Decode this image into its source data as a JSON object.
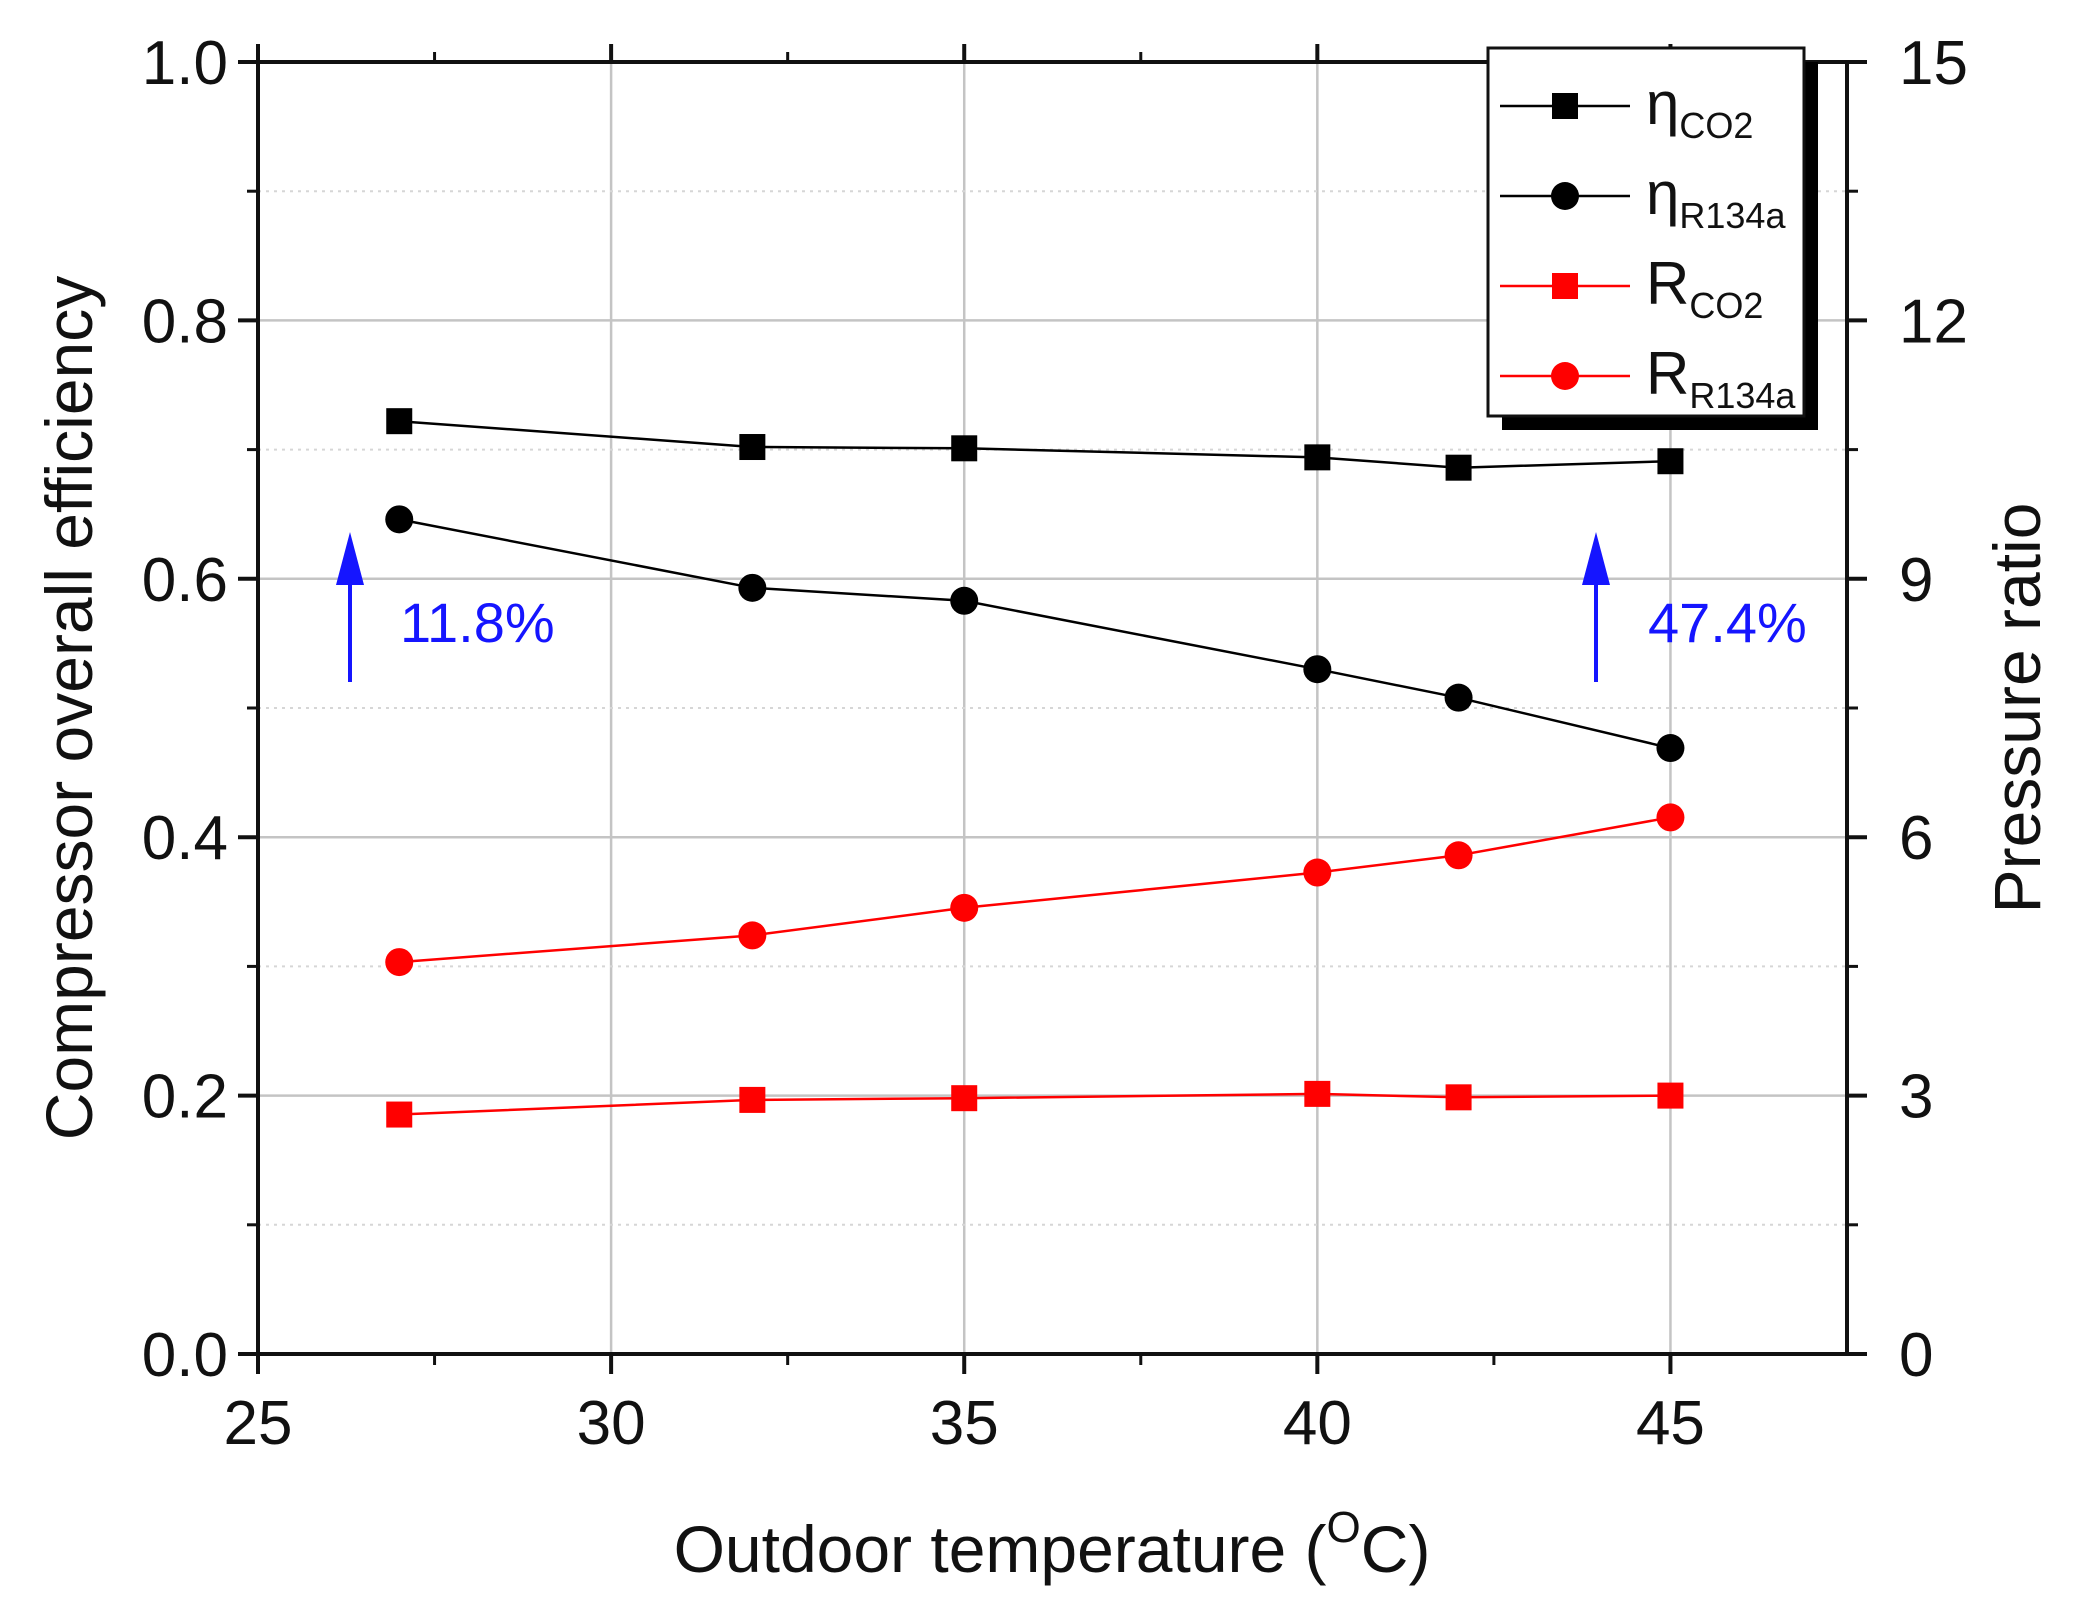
{
  "chart_data": {
    "type": "line",
    "title": "",
    "xlabel_main": "Outdoor temperature (",
    "xlabel_super": "O",
    "xlabel_end": "C)",
    "ylabel_left": "Compressor overall efficiency",
    "ylabel_right": "Pressure ratio",
    "xlim": [
      25,
      47.5
    ],
    "ylim_left": [
      0.0,
      1.0
    ],
    "ylim_right": [
      0,
      15
    ],
    "x_ticks": [
      25,
      30,
      35,
      40,
      45
    ],
    "x_tick_labels": [
      "25",
      "30",
      "35",
      "40",
      "45"
    ],
    "y_left_ticks": [
      0.0,
      0.2,
      0.4,
      0.6,
      0.8,
      1.0
    ],
    "y_left_tick_labels": [
      "0.0",
      "0.2",
      "0.4",
      "0.6",
      "0.8",
      "1.0"
    ],
    "y_right_ticks": [
      0,
      3,
      6,
      9,
      12,
      15
    ],
    "y_right_tick_labels": [
      "0",
      "3",
      "6",
      "9",
      "12",
      "15"
    ],
    "grid": true,
    "legend_position": "top-right",
    "x": [
      27,
      32,
      35,
      40,
      42,
      45
    ],
    "series": [
      {
        "name": "η",
        "sub": "CO2",
        "axis": "left",
        "marker": "square",
        "color": "#000000",
        "values": [
          0.722,
          0.702,
          0.701,
          0.694,
          0.686,
          0.691
        ]
      },
      {
        "name": "η",
        "sub": "R134a",
        "axis": "left",
        "marker": "circle",
        "color": "#000000",
        "values": [
          0.646,
          0.593,
          0.583,
          0.53,
          0.508,
          0.469
        ]
      },
      {
        "name": "R",
        "sub": "CO2",
        "axis": "right",
        "marker": "square",
        "color": "#ff0000",
        "values": [
          2.78,
          2.95,
          2.97,
          3.02,
          2.98,
          3.0
        ]
      },
      {
        "name": "R",
        "sub": "R134a",
        "axis": "right",
        "marker": "circle",
        "color": "#ff0000",
        "values": [
          4.55,
          4.86,
          5.18,
          5.59,
          5.79,
          6.23
        ]
      }
    ],
    "annotations": [
      {
        "text": "11.8%",
        "x": 27,
        "color": "#1515ff"
      },
      {
        "text": "47.4%",
        "x": 45,
        "color": "#1515ff"
      }
    ]
  }
}
